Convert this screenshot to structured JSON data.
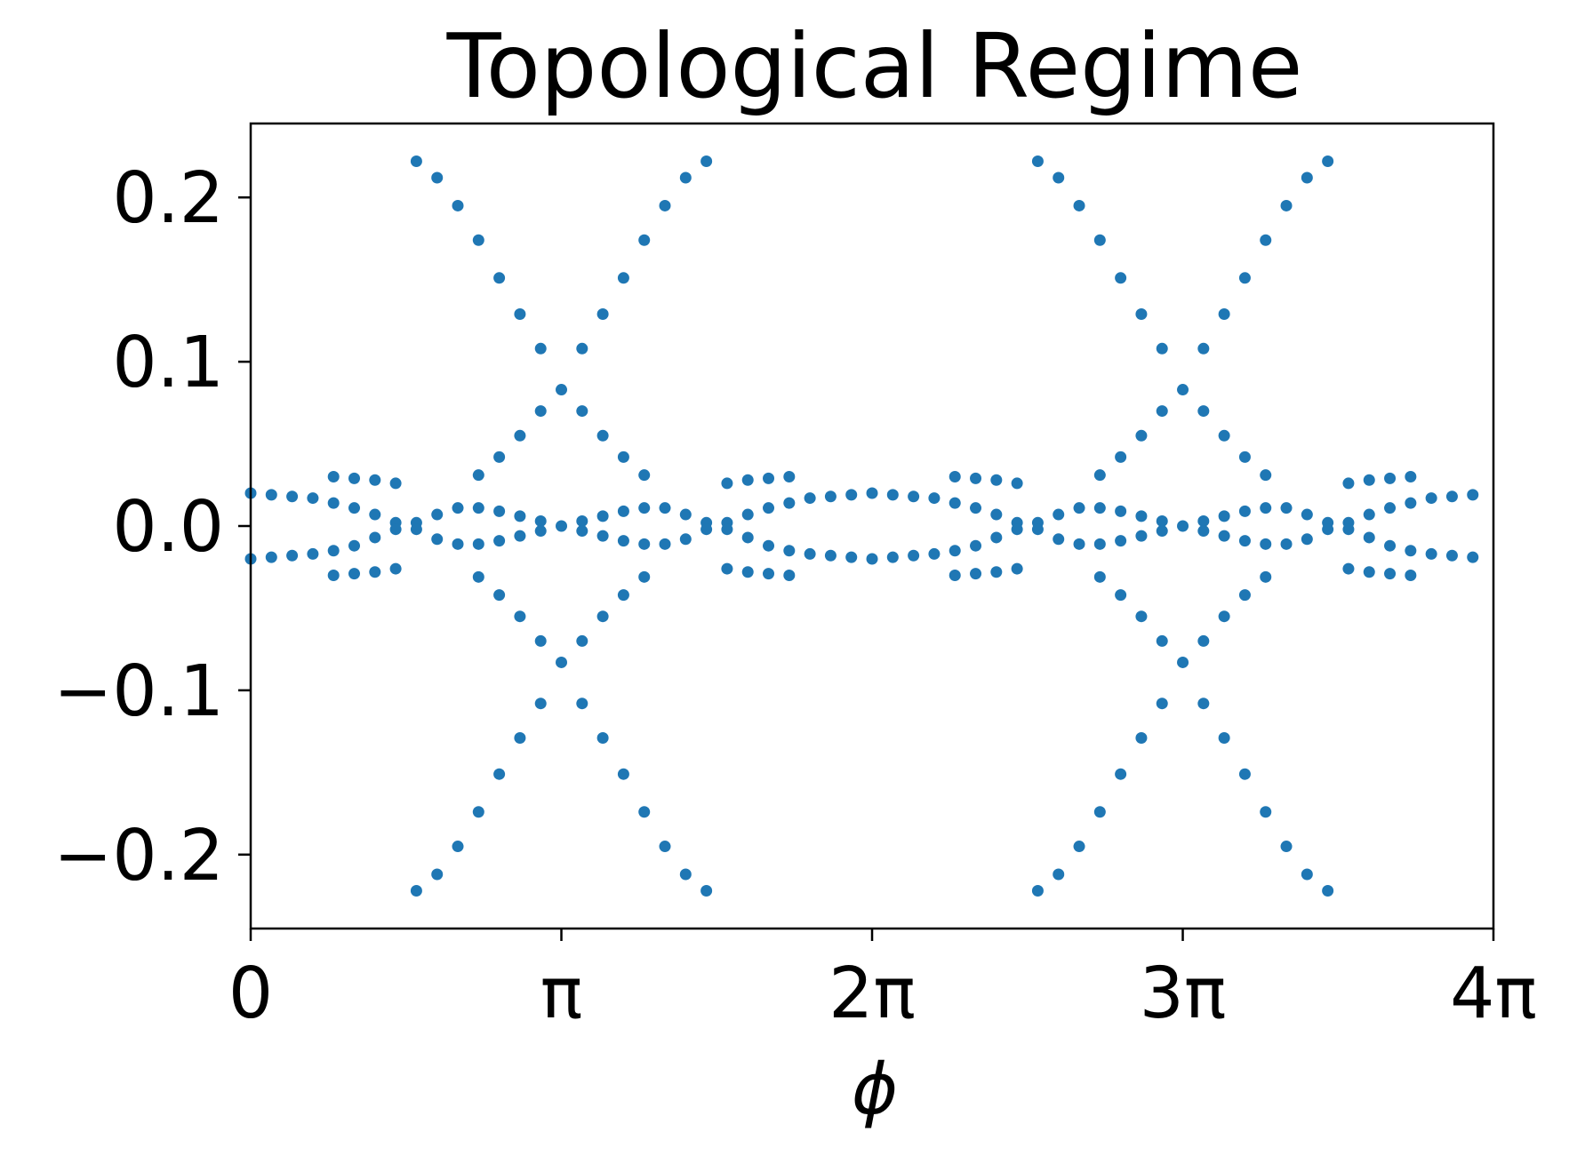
{
  "chart_data": {
    "type": "scatter",
    "title": "Topological Regime",
    "xlabel": "ϕ",
    "ylabel": "",
    "xlim": [
      0,
      12.566
    ],
    "ylim": [
      -0.245,
      0.245
    ],
    "xticks": [
      {
        "value": 0,
        "label": "0"
      },
      {
        "value": 3.1416,
        "label": "π"
      },
      {
        "value": 6.2832,
        "label": "2π"
      },
      {
        "value": 9.4248,
        "label": "3π"
      },
      {
        "value": 12.566,
        "label": "4π"
      }
    ],
    "yticks": [
      {
        "value": 0.2,
        "label": "0.2"
      },
      {
        "value": 0.1,
        "label": "0.1"
      },
      {
        "value": 0.0,
        "label": "0.0"
      },
      {
        "value": -0.1,
        "label": "−0.1"
      },
      {
        "value": -0.2,
        "label": "−0.2"
      }
    ],
    "grid": false,
    "legend": "none",
    "marker_color": "#1f77b4",
    "half_period_points": [
      {
        "x": 0.0,
        "ys": [
          0.02,
          -0.02
        ]
      },
      {
        "x": 0.2094,
        "ys": [
          0.019,
          -0.019
        ]
      },
      {
        "x": 0.4189,
        "ys": [
          0.018,
          -0.018
        ]
      },
      {
        "x": 0.6283,
        "ys": [
          0.017,
          -0.017
        ]
      },
      {
        "x": 0.8378,
        "ys": [
          0.03,
          0.014,
          -0.015,
          -0.03
        ]
      },
      {
        "x": 1.0472,
        "ys": [
          0.029,
          0.011,
          -0.012,
          -0.029
        ]
      },
      {
        "x": 1.2566,
        "ys": [
          0.028,
          0.007,
          -0.007,
          -0.028
        ]
      },
      {
        "x": 1.4661,
        "ys": [
          0.026,
          0.002,
          -0.002,
          -0.026
        ]
      },
      {
        "x": 1.6755,
        "ys": [
          0.222,
          0.002,
          -0.002,
          -0.222
        ]
      },
      {
        "x": 1.885,
        "ys": [
          0.212,
          0.007,
          -0.008,
          -0.212
        ]
      },
      {
        "x": 2.0944,
        "ys": [
          0.195,
          0.011,
          -0.011,
          -0.195
        ]
      },
      {
        "x": 2.3038,
        "ys": [
          0.174,
          0.031,
          0.011,
          -0.011,
          -0.031,
          -0.174
        ]
      },
      {
        "x": 2.5133,
        "ys": [
          0.151,
          0.042,
          0.009,
          -0.009,
          -0.042,
          -0.151
        ]
      },
      {
        "x": 2.7227,
        "ys": [
          0.129,
          0.055,
          0.006,
          -0.006,
          -0.055,
          -0.129
        ]
      },
      {
        "x": 2.9322,
        "ys": [
          0.108,
          0.07,
          0.003,
          -0.003,
          -0.07,
          -0.108
        ]
      },
      {
        "x": 3.1416,
        "ys": [
          0.083,
          0.0,
          -0.083
        ]
      }
    ]
  }
}
